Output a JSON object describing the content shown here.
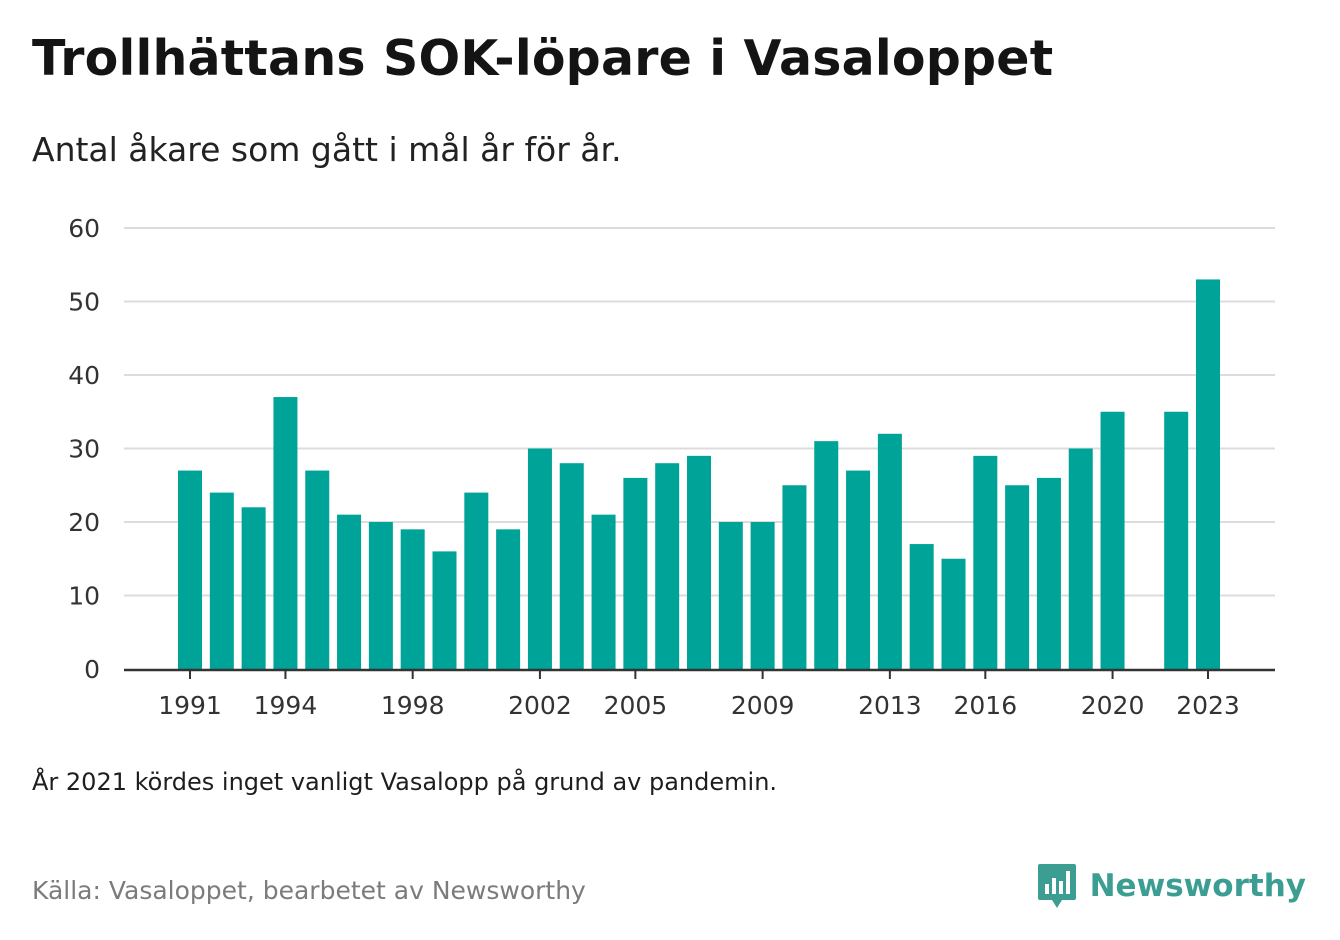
{
  "header": {
    "title": "Trollhättans SOK-löpare i Vasaloppet",
    "subtitle": "Antal åkare som gått i mål år för år."
  },
  "footer": {
    "note": "År 2021 kördes inget vanligt Vasalopp på grund av pandemin.",
    "source": "Källa: Vasaloppet, bearbetet av Newsworthy",
    "brand": "Newsworthy",
    "brand_icon": "newsworthy-logo-icon"
  },
  "colors": {
    "bar": "#00a398",
    "grid": "#dcdcdc",
    "axis": "#333333",
    "brand": "#3c9d93"
  },
  "chart_data": {
    "type": "bar",
    "x": [
      1991,
      1992,
      1993,
      1994,
      1995,
      1996,
      1997,
      1998,
      1999,
      2000,
      2001,
      2002,
      2003,
      2004,
      2005,
      2006,
      2007,
      2008,
      2009,
      2010,
      2011,
      2012,
      2013,
      2014,
      2015,
      2016,
      2017,
      2018,
      2019,
      2020,
      2021,
      2022,
      2023
    ],
    "values": [
      27,
      24,
      22,
      37,
      27,
      21,
      20,
      19,
      16,
      24,
      19,
      30,
      28,
      21,
      26,
      28,
      29,
      20,
      20,
      25,
      31,
      27,
      32,
      17,
      15,
      29,
      25,
      26,
      30,
      35,
      null,
      35,
      53
    ],
    "xticks": [
      "1991",
      "1994",
      "1998",
      "2002",
      "2005",
      "2009",
      "2013",
      "2016",
      "2020",
      "2023"
    ],
    "yticks": [
      "0",
      "10",
      "20",
      "30",
      "40",
      "50",
      "60"
    ],
    "ylim": [
      0,
      60
    ],
    "grid": true
  }
}
